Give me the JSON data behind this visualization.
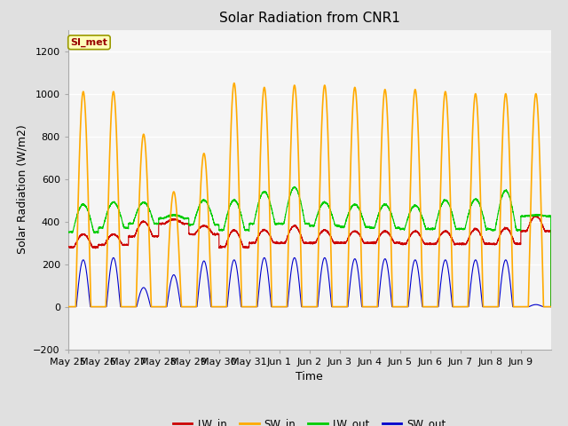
{
  "title": "Solar Radiation from CNR1",
  "xlabel": "Time",
  "ylabel": "Solar Radiation (W/m2)",
  "ylim": [
    -200,
    1300
  ],
  "yticks": [
    -200,
    0,
    200,
    400,
    600,
    800,
    1000,
    1200
  ],
  "x_labels": [
    "May 25",
    "May 26",
    "May 27",
    "May 28",
    "May 29",
    "May 30",
    "May 31",
    "Jun 1",
    "Jun 2",
    "Jun 3",
    "Jun 4",
    "Jun 5",
    "Jun 6",
    "Jun 7",
    "Jun 8",
    "Jun 9"
  ],
  "legend_label": "SI_met",
  "legend_entries": [
    "LW_in",
    "SW_in",
    "LW_out",
    "SW_out"
  ],
  "legend_colors": [
    "#cc0000",
    "#ffaa00",
    "#00cc00",
    "#0000cc"
  ],
  "line_colors": {
    "LW_in": "#cc0000",
    "SW_in": "#ffaa00",
    "LW_out": "#00cc00",
    "SW_out": "#0000cc"
  },
  "bg_color": "#e0e0e0",
  "plot_bg_color": "#f5f5f5",
  "grid_color": "#ffffff",
  "num_days": 16,
  "day_peak_SW_in": [
    1010,
    1010,
    810,
    540,
    720,
    1050,
    1030,
    1040,
    1040,
    1030,
    1020,
    1020,
    1010,
    1000,
    1000,
    1000
  ],
  "day_peak_SW_out": [
    220,
    230,
    90,
    150,
    215,
    220,
    230,
    230,
    230,
    225,
    225,
    220,
    220,
    220,
    220,
    10
  ],
  "day_base_LW_in": [
    280,
    290,
    330,
    390,
    340,
    280,
    300,
    300,
    300,
    300,
    300,
    295,
    295,
    295,
    295,
    355
  ],
  "day_peak_LW_in": [
    340,
    340,
    400,
    410,
    380,
    360,
    360,
    380,
    360,
    355,
    355,
    355,
    355,
    365,
    370,
    425
  ],
  "day_base_LW_out": [
    350,
    370,
    390,
    415,
    385,
    360,
    390,
    390,
    380,
    375,
    370,
    365,
    365,
    365,
    360,
    425
  ],
  "day_peak_LW_out": [
    480,
    490,
    490,
    430,
    500,
    500,
    540,
    560,
    490,
    480,
    480,
    475,
    500,
    505,
    545,
    430
  ],
  "title_fontsize": 11,
  "axis_fontsize": 9,
  "tick_fontsize": 8
}
